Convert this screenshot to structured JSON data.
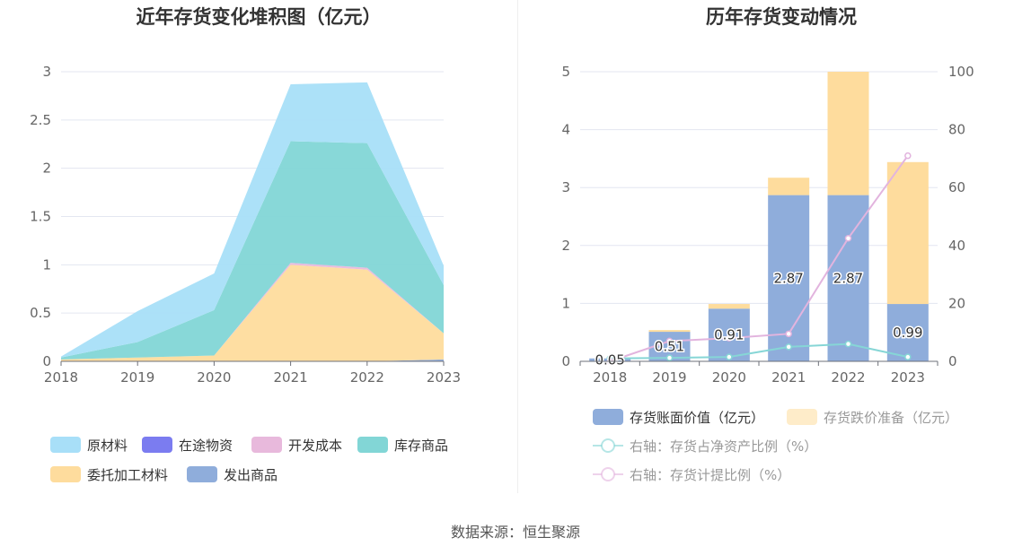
{
  "colors": {
    "raw": "#a8dff8",
    "transit": "#7b7cf0",
    "dev": "#e8b9dc",
    "stock": "#82d6d6",
    "consign": "#fedc9d",
    "shipped": "#8faddb",
    "book": "#8faddb",
    "reserve": "#fedc9d",
    "line_ratio": "#86d6d6",
    "line_provision": "#e2b4de",
    "grid": "#e3e6f1",
    "axis": "#6e7079",
    "tick": "#666666"
  },
  "source": "数据来源：恒生聚源",
  "chart_data": [
    {
      "type": "area",
      "stacked": true,
      "title": "近年存货变化堆积图（亿元）",
      "x": [
        "2018",
        "2019",
        "2020",
        "2021",
        "2022",
        "2023"
      ],
      "ylim": [
        0,
        3
      ],
      "yticks": [
        "0",
        "0.5",
        "1",
        "1.5",
        "2",
        "2.5",
        "3"
      ],
      "series": [
        {
          "name": "发出商品",
          "color": "#8faddb",
          "values": [
            0,
            0,
            0,
            0,
            0,
            0.02
          ]
        },
        {
          "name": "委托加工材料",
          "color": "#fedc9d",
          "values": [
            0.02,
            0.04,
            0.06,
            1.0,
            0.95,
            0.27
          ]
        },
        {
          "name": "开发成本",
          "color": "#e8b9dc",
          "values": [
            0,
            0,
            0,
            0.02,
            0.02,
            0
          ]
        },
        {
          "name": "在途物资",
          "color": "#7b7cf0",
          "values": [
            0,
            0,
            0,
            0,
            0,
            0
          ]
        },
        {
          "name": "库存商品",
          "color": "#82d6d6",
          "values": [
            0.02,
            0.16,
            0.47,
            1.26,
            1.29,
            0.5
          ]
        },
        {
          "name": "原材料",
          "color": "#a8dff8",
          "values": [
            0.01,
            0.32,
            0.38,
            0.59,
            0.63,
            0.2
          ]
        }
      ],
      "legend": [
        {
          "name": "原材料",
          "color": "#a8dff8"
        },
        {
          "name": "在途物资",
          "color": "#7b7cf0"
        },
        {
          "name": "开发成本",
          "color": "#e8b9dc"
        },
        {
          "name": "库存商品",
          "color": "#82d6d6"
        },
        {
          "name": "委托加工材料",
          "color": "#fedc9d"
        },
        {
          "name": "发出商品",
          "color": "#8faddb"
        }
      ],
      "legend_position": "bottom",
      "grid": true
    },
    {
      "type": "bar",
      "stacked": true,
      "title": "历年存货变动情况",
      "categories": [
        "2018",
        "2019",
        "2020",
        "2021",
        "2022",
        "2023"
      ],
      "ylim": [
        0,
        5
      ],
      "yticks": [
        "0",
        "1",
        "2",
        "3",
        "4",
        "5"
      ],
      "y2lim": [
        0,
        100
      ],
      "y2ticks": [
        "0",
        "20",
        "40",
        "60",
        "80",
        "100"
      ],
      "series": [
        {
          "name": "存货账面价值（亿元）",
          "color": "#8faddb",
          "values": [
            0.05,
            0.51,
            0.91,
            2.87,
            2.87,
            0.99
          ],
          "labels": [
            "0.05",
            "0.51",
            "0.91",
            "2.87",
            "2.87",
            "0.99"
          ]
        },
        {
          "name": "存货跌价准备（亿元）",
          "color": "#fedc9d",
          "values": [
            0.0,
            0.03,
            0.08,
            0.3,
            2.13,
            2.45
          ]
        }
      ],
      "lines": [
        {
          "name": "右轴：存货占净资产比例（%）",
          "color": "#86d6d6",
          "axis": "right",
          "values": [
            1.0,
            1.2,
            1.5,
            5.0,
            6.0,
            1.5
          ]
        },
        {
          "name": "右轴：存货计提比例（%）",
          "color": "#e2b4de",
          "axis": "right",
          "values": [
            0.0,
            7.0,
            8.0,
            9.5,
            42.5,
            71.0
          ]
        }
      ],
      "legend_position": "bottom",
      "grid": true
    }
  ]
}
